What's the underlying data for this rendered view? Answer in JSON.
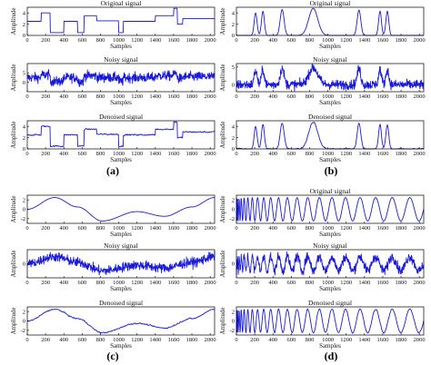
{
  "figure": {
    "panel_labels": [
      "(a)",
      "(b)",
      "(c)",
      "(d)"
    ],
    "colors": {
      "signal": "#1a1adc",
      "axes": "#000000"
    }
  },
  "chart_data": [
    {
      "panel": "(a)",
      "type": "line",
      "title": "Original signal",
      "xlabel": "Samples",
      "ylabel": "Amplitude",
      "xlim": [
        0,
        2048
      ],
      "ylim": [
        0,
        5
      ],
      "x_ticks": [
        "0",
        "200",
        "400",
        "600",
        "800",
        "1000",
        "1200",
        "1400",
        "1600",
        "1800",
        "2000"
      ],
      "y_ticks": [
        "0",
        "2",
        "4"
      ],
      "series": [
        {
          "values": [
            [
              0,
              2.5
            ],
            [
              150,
              2.5
            ],
            [
              150,
              4
            ],
            [
              250,
              4
            ],
            [
              250,
              0.5
            ],
            [
              400,
              0.5
            ],
            [
              400,
              2.5
            ],
            [
              550,
              2.5
            ],
            [
              550,
              0.5
            ],
            [
              620,
              0.5
            ],
            [
              620,
              3.5
            ],
            [
              760,
              3.5
            ],
            [
              760,
              2.6
            ],
            [
              1000,
              2.6
            ],
            [
              1000,
              0.5
            ],
            [
              1050,
              0.5
            ],
            [
              1050,
              2.5
            ],
            [
              1400,
              2.5
            ],
            [
              1400,
              3.5
            ],
            [
              1600,
              3.5
            ],
            [
              1600,
              4.8
            ],
            [
              1640,
              4.8
            ],
            [
              1640,
              2
            ],
            [
              1700,
              2
            ],
            [
              1700,
              3
            ],
            [
              2048,
              3
            ]
          ]
        }
      ]
    },
    {
      "panel": "(a)",
      "type": "line",
      "title": "Noisy signal",
      "xlabel": "Samples",
      "ylabel": "Amplitude",
      "xlim": [
        0,
        2048
      ],
      "ylim": [
        -5,
        10
      ],
      "x_ticks": [
        "0",
        "200",
        "400",
        "600",
        "800",
        "1000",
        "1200",
        "1400",
        "1600",
        "1800",
        "2000"
      ],
      "y_ticks": [
        "0",
        "5"
      ]
    },
    {
      "panel": "(a)",
      "type": "line",
      "title": "Denoised signal",
      "xlabel": "Samples",
      "ylabel": "Amplitude",
      "xlim": [
        0,
        2048
      ],
      "ylim": [
        0,
        5
      ],
      "x_ticks": [
        "0",
        "200",
        "400",
        "600",
        "800",
        "1000",
        "1200",
        "1400",
        "1600",
        "1800",
        "2000"
      ],
      "y_ticks": [
        "0",
        "2",
        "4"
      ]
    },
    {
      "panel": "(b)",
      "type": "line",
      "title": "Original signal",
      "xlabel": "Samples",
      "ylabel": "Amplitude",
      "xlim": [
        0,
        2048
      ],
      "ylim": [
        0,
        5
      ],
      "x_ticks": [
        "0",
        "200",
        "400",
        "600",
        "800",
        "1000",
        "1200",
        "1400",
        "1600",
        "1800",
        "2000"
      ],
      "y_ticks": [
        "0",
        "2",
        "4"
      ],
      "series": [
        {
          "bumps": [
            [
              210,
              22,
              4.0
            ],
            [
              290,
              22,
              4.3
            ],
            [
              500,
              30,
              4.6
            ],
            [
              840,
              70,
              4.8
            ],
            [
              1340,
              28,
              4.5
            ],
            [
              1570,
              22,
              4.3
            ],
            [
              1650,
              22,
              4.3
            ]
          ]
        }
      ]
    },
    {
      "panel": "(b)",
      "type": "line",
      "title": "Noisy signal",
      "xlabel": "Samples",
      "ylabel": "Amplitude",
      "xlim": [
        0,
        2048
      ],
      "ylim": [
        -2,
        6
      ],
      "x_ticks": [
        "0",
        "200",
        "400",
        "600",
        "800",
        "1000",
        "1200",
        "1400",
        "1600",
        "1800",
        "2000"
      ],
      "y_ticks": [
        "0",
        "5"
      ]
    },
    {
      "panel": "(b)",
      "type": "line",
      "title": "Denoised signal",
      "xlabel": "Samples",
      "ylabel": "Amplitude",
      "xlim": [
        0,
        2048
      ],
      "ylim": [
        0,
        5
      ],
      "x_ticks": [
        "0",
        "200",
        "400",
        "600",
        "800",
        "1000",
        "1200",
        "1400",
        "1600",
        "1800",
        "2000"
      ],
      "y_ticks": [
        "0",
        "2",
        "4"
      ]
    },
    {
      "panel": "(c)",
      "type": "line",
      "title": "",
      "xlabel": "Samples",
      "ylabel": "Amplitude",
      "xlim": [
        0,
        2048
      ],
      "ylim": [
        -3,
        3
      ],
      "x_ticks": [
        "0",
        "200",
        "400",
        "600",
        "800",
        "1000",
        "1200",
        "1400",
        "1600",
        "1800",
        "2000"
      ],
      "y_ticks": [
        "-2",
        "0",
        "2"
      ],
      "series": [
        {
          "points": [
            [
              0,
              0
            ],
            [
              300,
              2.5
            ],
            [
              550,
              0.5
            ],
            [
              820,
              -2.5
            ],
            [
              1200,
              -0.5
            ],
            [
              1500,
              -1.5
            ],
            [
              1800,
              0.5
            ],
            [
              2048,
              2.5
            ]
          ]
        }
      ]
    },
    {
      "panel": "(c)",
      "type": "line",
      "title": "Noisy signal",
      "xlabel": "Samples",
      "ylabel": "Amplitude",
      "xlim": [
        0,
        2048
      ],
      "ylim": [
        -5,
        5
      ],
      "x_ticks": [
        "0",
        "200",
        "400",
        "600",
        "800",
        "1000",
        "1200",
        "1400",
        "1600",
        "1800",
        "2000"
      ],
      "y_ticks": [
        "0"
      ]
    },
    {
      "panel": "(c)",
      "type": "line",
      "title": "Denoised signal",
      "xlabel": "Samples",
      "ylabel": "Amplitude",
      "xlim": [
        0,
        2048
      ],
      "ylim": [
        -3,
        3
      ],
      "x_ticks": [
        "0",
        "200",
        "400",
        "600",
        "800",
        "1000",
        "1200",
        "1400",
        "1600",
        "1800",
        "2000"
      ],
      "y_ticks": [
        "-2",
        "0",
        "2"
      ]
    },
    {
      "panel": "(d)",
      "type": "line",
      "title": "Original signal",
      "xlabel": "Samples",
      "ylabel": "Amplitude",
      "xlim": [
        0,
        2048
      ],
      "ylim": [
        -3,
        3
      ],
      "x_ticks": [
        "0",
        "200",
        "400",
        "600",
        "800",
        "1000",
        "1200",
        "1400",
        "1600",
        "1800",
        "2000"
      ],
      "y_ticks": [
        "-2",
        "0",
        "2"
      ],
      "series": [
        {
          "chirp": {
            "amplitude": 2.5,
            "cycles": 10,
            "power": 0.45
          }
        }
      ]
    },
    {
      "panel": "(d)",
      "type": "line",
      "title": "Noisy signal",
      "xlabel": "Samples",
      "ylabel": "Amplitude",
      "xlim": [
        0,
        2048
      ],
      "ylim": [
        -5,
        5
      ],
      "x_ticks": [
        "0",
        "200",
        "400",
        "600",
        "800",
        "1000",
        "1200",
        "1400",
        "1600",
        "1800",
        "2000"
      ],
      "y_ticks": [
        "0"
      ]
    },
    {
      "panel": "(d)",
      "type": "line",
      "title": "Denoised signal",
      "xlabel": "Samples",
      "ylabel": "Amplitude",
      "xlim": [
        0,
        2048
      ],
      "ylim": [
        -3,
        3
      ],
      "x_ticks": [
        "0",
        "200",
        "400",
        "600",
        "800",
        "1000",
        "1200",
        "1400",
        "1600",
        "1800",
        "2000"
      ],
      "y_ticks": [
        "-2",
        "0",
        "2"
      ]
    }
  ]
}
